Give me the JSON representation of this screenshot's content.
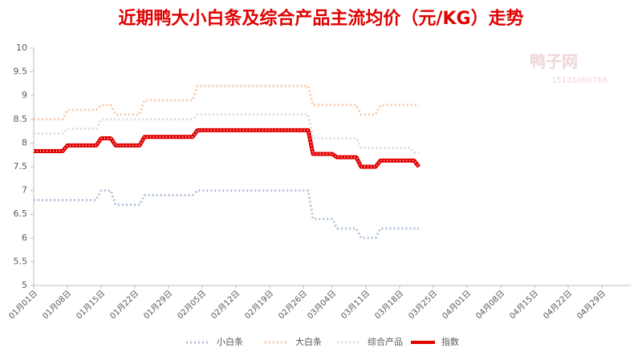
{
  "chart_data": {
    "type": "line",
    "title": "近期鸭大小白条及综合产品主流均价（元/KG）走势",
    "watermark": "鸭子网",
    "watermark_phone": "15131069766",
    "x": [
      1,
      2,
      3,
      4,
      5,
      6,
      7,
      8,
      9,
      10,
      11,
      12,
      13,
      14,
      15,
      16,
      17,
      18,
      19,
      20,
      21,
      22,
      23,
      24,
      25,
      26,
      27,
      28,
      29,
      30,
      31,
      32,
      33,
      34,
      35,
      36,
      37,
      38,
      39,
      40,
      41,
      42,
      43,
      44,
      45,
      46,
      47,
      48,
      49,
      50,
      51,
      52,
      53,
      54,
      55,
      56,
      57,
      58,
      59,
      60,
      61,
      62,
      63,
      64,
      65,
      66,
      67,
      68,
      69,
      70,
      71,
      72,
      73,
      74,
      75,
      76,
      77,
      78,
      79,
      80,
      81
    ],
    "xlim": [
      1,
      125
    ],
    "xticks": [
      {
        "value": 1,
        "label": "01月01日"
      },
      {
        "value": 8,
        "label": "01月08日"
      },
      {
        "value": 15,
        "label": "01月15日"
      },
      {
        "value": 22,
        "label": "01月22日"
      },
      {
        "value": 29,
        "label": "01月29日"
      },
      {
        "value": 36,
        "label": "02月05日"
      },
      {
        "value": 43,
        "label": "02月12日"
      },
      {
        "value": 50,
        "label": "02月19日"
      },
      {
        "value": 57,
        "label": "02月26日"
      },
      {
        "value": 63,
        "label": "03月04日"
      },
      {
        "value": 70,
        "label": "03月11日"
      },
      {
        "value": 77,
        "label": "03月18日"
      },
      {
        "value": 84,
        "label": "03月25日"
      },
      {
        "value": 91,
        "label": "04月01日"
      },
      {
        "value": 98,
        "label": "04月08日"
      },
      {
        "value": 105,
        "label": "04月15日"
      },
      {
        "value": 112,
        "label": "04月22日"
      },
      {
        "value": 119,
        "label": "04月29日"
      }
    ],
    "ylim": [
      5,
      10
    ],
    "yticks": [
      5,
      5.5,
      6,
      6.5,
      7,
      7.5,
      8,
      8.5,
      9,
      9.5,
      10
    ],
    "grid": false,
    "legend": "bottom",
    "series": [
      {
        "name": "小白条",
        "color": "#b4c3d8",
        "style": "dotted",
        "values": [
          6.8,
          6.8,
          6.8,
          6.8,
          6.8,
          6.8,
          6.8,
          6.8,
          6.8,
          6.8,
          6.8,
          6.8,
          6.8,
          6.8,
          7,
          7,
          7,
          6.7,
          6.7,
          6.7,
          6.7,
          6.7,
          6.7,
          6.9,
          6.9,
          6.9,
          6.9,
          6.9,
          6.9,
          6.9,
          6.9,
          6.9,
          6.9,
          6.9,
          7,
          7,
          7,
          7,
          7,
          7,
          7,
          7,
          7,
          7,
          7,
          7,
          7,
          7,
          7,
          7,
          7,
          7,
          7,
          7,
          7,
          7,
          7,
          7,
          6.4,
          6.4,
          6.4,
          6.4,
          6.4,
          6.2,
          6.2,
          6.2,
          6.2,
          6.2,
          6,
          6,
          6,
          6,
          6.2,
          6.2,
          6.2,
          6.2,
          6.2,
          6.2,
          6.2,
          6.2,
          6.2
        ]
      },
      {
        "name": "大白条",
        "color": "#f6c9aa",
        "style": "dotted",
        "values": [
          8.5,
          8.5,
          8.5,
          8.5,
          8.5,
          8.5,
          8.5,
          8.7,
          8.7,
          8.7,
          8.7,
          8.7,
          8.7,
          8.7,
          8.8,
          8.8,
          8.8,
          8.6,
          8.6,
          8.6,
          8.6,
          8.6,
          8.6,
          8.9,
          8.9,
          8.9,
          8.9,
          8.9,
          8.9,
          8.9,
          8.9,
          8.9,
          8.9,
          8.9,
          9.2,
          9.2,
          9.2,
          9.2,
          9.2,
          9.2,
          9.2,
          9.2,
          9.2,
          9.2,
          9.2,
          9.2,
          9.2,
          9.2,
          9.2,
          9.2,
          9.2,
          9.2,
          9.2,
          9.2,
          9.2,
          9.2,
          9.2,
          9.2,
          8.8,
          8.8,
          8.8,
          8.8,
          8.8,
          8.8,
          8.8,
          8.8,
          8.8,
          8.8,
          8.6,
          8.6,
          8.6,
          8.6,
          8.8,
          8.8,
          8.8,
          8.8,
          8.8,
          8.8,
          8.8,
          8.8,
          8.8
        ]
      },
      {
        "name": "综合产品",
        "color": "#d5dde8",
        "style": "dotted",
        "values": [
          8.2,
          8.2,
          8.2,
          8.2,
          8.2,
          8.2,
          8.2,
          8.3,
          8.3,
          8.3,
          8.3,
          8.3,
          8.3,
          8.3,
          8.5,
          8.5,
          8.5,
          8.5,
          8.5,
          8.5,
          8.5,
          8.5,
          8.5,
          8.5,
          8.5,
          8.5,
          8.5,
          8.5,
          8.5,
          8.5,
          8.5,
          8.5,
          8.5,
          8.5,
          8.6,
          8.6,
          8.6,
          8.6,
          8.6,
          8.6,
          8.6,
          8.6,
          8.6,
          8.6,
          8.6,
          8.6,
          8.6,
          8.6,
          8.6,
          8.6,
          8.6,
          8.6,
          8.6,
          8.6,
          8.6,
          8.6,
          8.6,
          8.6,
          8.1,
          8.1,
          8.1,
          8.1,
          8.1,
          8.1,
          8.1,
          8.1,
          8.1,
          8.1,
          7.9,
          7.9,
          7.9,
          7.9,
          7.9,
          7.9,
          7.9,
          7.9,
          7.9,
          7.9,
          7.9,
          7.8,
          7.8
        ]
      },
      {
        "name": "指数",
        "color": "#e00000",
        "style": "solid",
        "values": [
          7.83,
          7.83,
          7.83,
          7.83,
          7.83,
          7.83,
          7.83,
          7.95,
          7.95,
          7.95,
          7.95,
          7.95,
          7.95,
          7.95,
          8.1,
          8.1,
          8.1,
          7.95,
          7.95,
          7.95,
          7.95,
          7.95,
          7.95,
          8.13,
          8.13,
          8.13,
          8.13,
          8.13,
          8.13,
          8.13,
          8.13,
          8.13,
          8.13,
          8.13,
          8.27,
          8.27,
          8.27,
          8.27,
          8.27,
          8.27,
          8.27,
          8.27,
          8.27,
          8.27,
          8.27,
          8.27,
          8.27,
          8.27,
          8.27,
          8.27,
          8.27,
          8.27,
          8.27,
          8.27,
          8.27,
          8.27,
          8.27,
          8.27,
          7.77,
          7.77,
          7.77,
          7.77,
          7.77,
          7.7,
          7.7,
          7.7,
          7.7,
          7.7,
          7.5,
          7.5,
          7.5,
          7.5,
          7.63,
          7.63,
          7.63,
          7.63,
          7.63,
          7.63,
          7.63,
          7.63,
          7.5
        ]
      }
    ]
  }
}
